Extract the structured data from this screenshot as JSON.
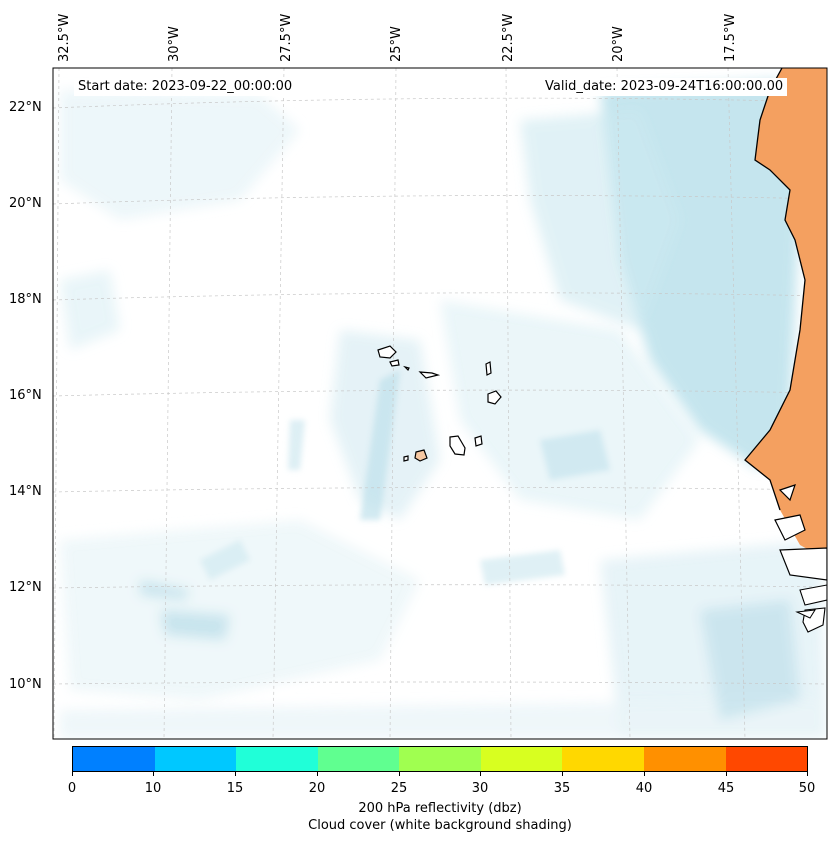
{
  "map": {
    "longitude_labels": [
      "32.5°W",
      "30°W",
      "27.5°W",
      "25°W",
      "22.5°W",
      "20°W",
      "17.5°W"
    ],
    "latitude_labels": [
      "22°N",
      "20°N",
      "18°N",
      "16°N",
      "14°N",
      "12°N",
      "10°N"
    ],
    "start_date": "Start date: 2023-09-22_00:00:00",
    "valid_date": "Valid_date: 2023-09-24T16:00:00.00",
    "land_color": "#f4a060",
    "cloud_color": "#a8d8e6",
    "grid": true
  },
  "colorbar": {
    "ticks": [
      "0",
      "10",
      "15",
      "20",
      "25",
      "30",
      "35",
      "40",
      "45",
      "50"
    ],
    "colors": [
      "#0080ff",
      "#00c8ff",
      "#20ffd8",
      "#60ff90",
      "#a0ff50",
      "#d8ff20",
      "#ffd800",
      "#ff9000",
      "#ff4800"
    ],
    "label_line1": "200 hPa reflectivity (dbz)",
    "label_line2": "Cloud cover (white background shading)"
  }
}
